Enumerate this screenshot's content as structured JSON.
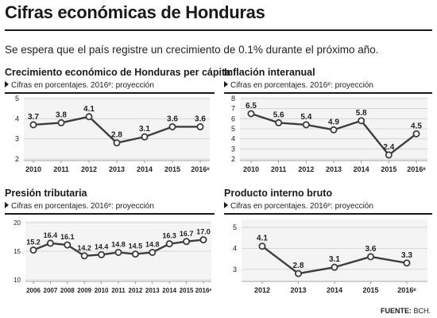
{
  "header": {
    "title": "Cifras económicas de Honduras",
    "subtitle": "Se espera que el país registre un crecimiento de 0.1% durante el próximo año."
  },
  "panels": [
    {
      "title": "Crecimiento económico de Honduras per cápita",
      "note": "Cifras en porcentajes. 2016ᵉ: proyección"
    },
    {
      "title": "Inflación interanual",
      "note": "Cifras en porcentajes. 2016ᵉ: proyección"
    },
    {
      "title": "Presión tributaria",
      "note": "Cifras en porcentajes. 2016ᵉ: proyección"
    },
    {
      "title": "Producto interno bruto",
      "note": "Cifras en porcentajes. 2016ᵉ: proyección"
    }
  ],
  "footer": {
    "source_label": "FUENTE:",
    "source_value": "BCH."
  },
  "colors": {
    "line": "#3d3d3d",
    "marker_fill": "#ffffff",
    "grid": "#cfcfcf",
    "plot_bg": "#f4f4f4"
  },
  "chart_data": [
    {
      "type": "line",
      "title": "Crecimiento económico de Honduras per cápita",
      "x": [
        "2010",
        "2011",
        "2012",
        "2013",
        "2014",
        "2015",
        "2016ᵉ"
      ],
      "values": [
        3.7,
        3.8,
        4.1,
        2.8,
        3.1,
        3.6,
        3.6
      ],
      "labels": [
        "3.7",
        "3.8",
        "4.1",
        "2.8",
        "3.1",
        "3.6",
        "3.6"
      ],
      "yticks": [
        2,
        3,
        4,
        5
      ],
      "ylim": [
        2,
        5
      ]
    },
    {
      "type": "line",
      "title": "Inflación interanual",
      "x": [
        "2010",
        "2011",
        "2012",
        "2013",
        "2014",
        "2015",
        "2016ᵉ"
      ],
      "values": [
        6.5,
        5.6,
        5.4,
        4.9,
        5.8,
        2.4,
        4.5
      ],
      "labels": [
        "6.5",
        "5.6",
        "5.4",
        "4.9",
        "5.8",
        "2.4",
        "4.5"
      ],
      "yticks": [
        2,
        3,
        4,
        5,
        6,
        7,
        8
      ],
      "ylim": [
        2,
        8
      ]
    },
    {
      "type": "line",
      "title": "Presión tributaria",
      "x": [
        "2006",
        "2007",
        "2008",
        "2009",
        "2010",
        "2011",
        "2012",
        "2013",
        "2014",
        "2015",
        "2016ᵉ"
      ],
      "values": [
        15.2,
        16.4,
        16.1,
        14.2,
        14.4,
        14.8,
        14.5,
        14.8,
        16.3,
        16.7,
        17.0
      ],
      "labels": [
        "15.2",
        "16.4",
        "16.1",
        "14.2",
        "14.4",
        "14.8",
        "14.5",
        "14.8",
        "16.3",
        "16.7",
        "17.0"
      ],
      "yticks": [
        10,
        15,
        20
      ],
      "ylim": [
        10,
        20
      ]
    },
    {
      "type": "line",
      "title": "Producto interno bruto",
      "x": [
        "2012",
        "2013",
        "2014",
        "2015",
        "2016ᵉ"
      ],
      "values": [
        4.1,
        2.8,
        3.1,
        3.6,
        3.3
      ],
      "labels": [
        "4.1",
        "2.8",
        "3.1",
        "3.6",
        "3.3"
      ],
      "yticks": [
        3,
        4,
        5
      ],
      "ylim": [
        2.5,
        5.3
      ]
    }
  ]
}
